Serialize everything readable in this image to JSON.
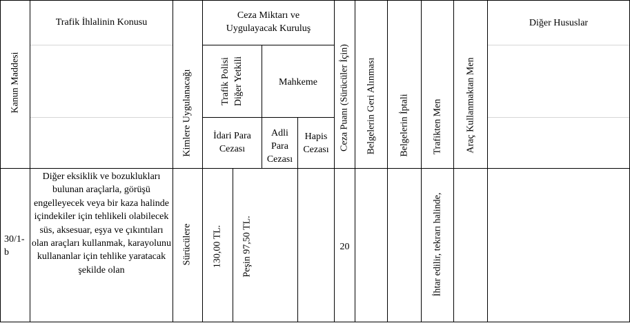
{
  "headers": {
    "kanun_maddesi": "Kanun Maddesi",
    "ihlal_konusu": "Trafik İhlalinin Konusu",
    "kimlere": "Kimlere Uygulanacağı",
    "ceza_miktari_line1": "Ceza Miktarı ve",
    "ceza_miktari_line2": "Uygulayacak Kuruluş",
    "trafik_polisi_line1": "Trafik Polisi",
    "trafik_polisi_line2": "Diğer Yetkili",
    "mahkeme": "Mahkeme",
    "idari_line1": "İdari Para",
    "idari_line2": "Cezası",
    "adli_line1": "Adli",
    "adli_line2": "Para",
    "adli_line3": "Cezası",
    "hapis_line1": "Hapis",
    "hapis_line2": "Cezası",
    "ceza_puani": "Ceza Puanı (Sürücüler İçin)",
    "belge_geri": "Belgelerin Geri Alınması",
    "belge_iptal": "Belgelerin İptali",
    "trafikten_men": "Trafikten Men",
    "arac_men": "Araç Kullanmaktan Men",
    "diger_hususlar": "Diğer Hususlar"
  },
  "row": {
    "madde_line1": "30/1-",
    "madde_line2": "b",
    "konu": "Diğer eksiklik ve bozuklukları bulunan araçlarla, görüşü engelleyecek veya bir kaza halinde içindekiler için tehlikeli olabilecek süs, aksesuar, eşya ve çıkıntıları olan araçları kullanmak, karayolunu kullananlar için tehlike yaratacak şekilde olan",
    "kimlere": "Sürücülere",
    "idari_ceza": "130,00 TL.",
    "pesin": "Peşin 97,50 TL.",
    "adli": "",
    "hapis": "",
    "puan": "20",
    "belge_geri": "",
    "belge_iptal": "",
    "trafikten_men": "İhtar edilir, tekrarı halinde,",
    "arac_men": "",
    "diger": ""
  }
}
